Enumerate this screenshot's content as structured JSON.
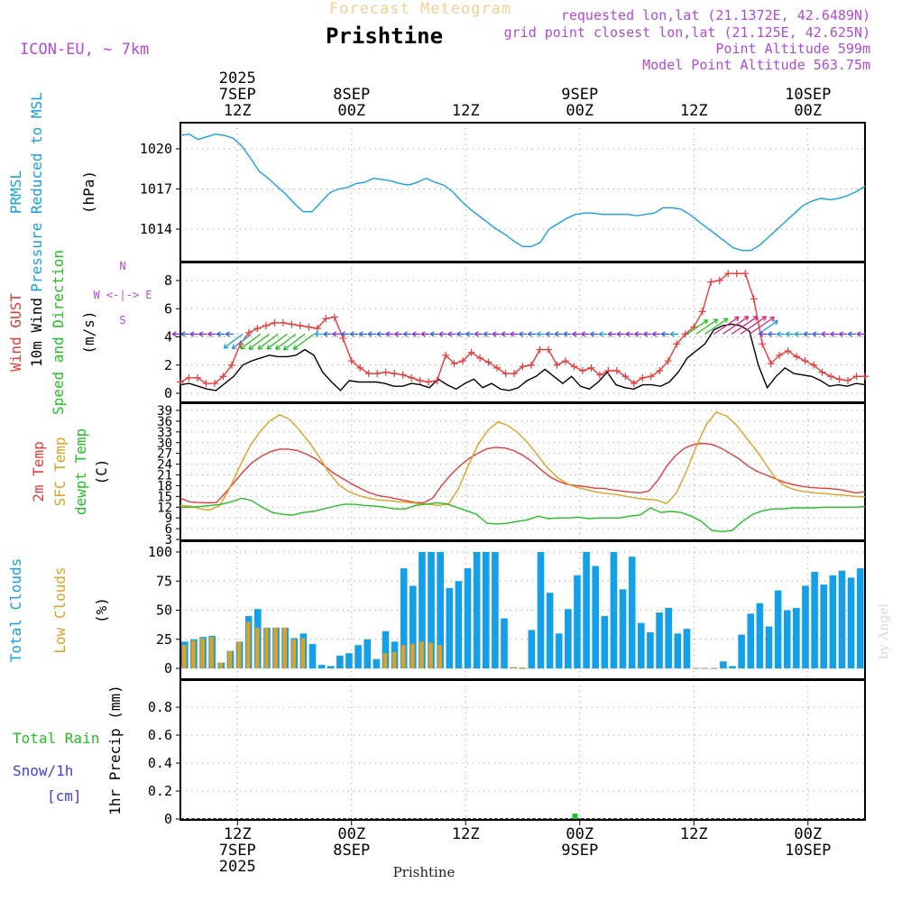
{
  "header": {
    "faded_title": "Forecast Meteogram",
    "place": "Prishtine",
    "model": "ICON-EU, ~ 7km",
    "requested": "requested lon,lat (21.1372E, 42.6489N)",
    "grid_point": "grid point closest lon,lat (21.125E, 42.625N)",
    "point_altitude": "Point Altitude 599m",
    "model_altitude": "Model Point Altitude 563.75m",
    "watermark": "by Angel",
    "footer_place": "Prishtine"
  },
  "time_axis": {
    "hours": [
      0,
      72
    ],
    "ticks": [
      {
        "h": 6,
        "top": [
          "2025",
          "7SEP",
          "12Z"
        ],
        "bottom": [
          "12Z",
          "7SEP",
          "2025"
        ]
      },
      {
        "h": 18,
        "top": [
          "8SEP",
          "00Z"
        ],
        "bottom": [
          "00Z",
          "8SEP"
        ]
      },
      {
        "h": 30,
        "top": [
          "12Z"
        ],
        "bottom": [
          "12Z"
        ]
      },
      {
        "h": 42,
        "top": [
          "9SEP",
          "00Z"
        ],
        "bottom": [
          "00Z",
          "9SEP"
        ]
      },
      {
        "h": 54,
        "top": [
          "12Z"
        ],
        "bottom": [
          "12Z"
        ]
      },
      {
        "h": 66,
        "top": [
          "10SEP",
          "00Z"
        ],
        "bottom": [
          "00Z",
          "10SEP"
        ]
      }
    ]
  },
  "chart_data": [
    {
      "type": "line",
      "id": "pressure",
      "title": "PRMSL Pressure Reduced to MSL",
      "ylabel": "(hPa)",
      "side_labels": [
        {
          "text": "PRMSL",
          "color": "#14a0e8"
        },
        {
          "text": "Pressure Reduced to MSL",
          "color": "#14a0e8"
        }
      ],
      "ylim": [
        1012.2,
        1022.0
      ],
      "yticks": [
        1014,
        1017,
        1020
      ],
      "series": [
        {
          "name": "PRMSL",
          "color": "#14a0e8",
          "values": [
            1021.0,
            1021.1,
            1020.7,
            1020.9,
            1021.1,
            1021.0,
            1020.8,
            1020.2,
            1019.3,
            1018.3,
            1017.8,
            1017.2,
            1016.6,
            1015.9,
            1015.3,
            1015.3,
            1016.0,
            1016.7,
            1017.0,
            1017.1,
            1017.4,
            1017.5,
            1017.8,
            1017.7,
            1017.6,
            1017.4,
            1017.3,
            1017.5,
            1017.8,
            1017.5,
            1017.3,
            1016.8,
            1016.1,
            1015.5,
            1015.0,
            1014.5,
            1014.0,
            1013.6,
            1013.1,
            1012.7,
            1012.7,
            1013.0,
            1014.0,
            1014.4,
            1014.8,
            1015.1,
            1015.2,
            1015.2,
            1015.1,
            1015.1,
            1015.1,
            1015.1,
            1015.0,
            1015.1,
            1015.2,
            1015.6,
            1015.6,
            1015.5,
            1015.1,
            1014.6,
            1014.1,
            1013.6,
            1013.1,
            1012.6,
            1012.4,
            1012.4,
            1012.8,
            1013.4,
            1014.0,
            1014.6,
            1015.2,
            1015.8,
            1016.1,
            1016.3,
            1016.2,
            1016.3,
            1016.5,
            1016.8,
            1017.2
          ]
        }
      ]
    },
    {
      "type": "line",
      "id": "wind",
      "title": "Wind GUST / 10m Wind Speed and Direction",
      "ylabel": "(m/s)",
      "side_labels": [
        {
          "text": "Wind GUST",
          "color": "#e83838"
        },
        {
          "text": "10m Wind",
          "color": "#000000"
        },
        {
          "text": "Speed and Direction",
          "color": "#22c022"
        }
      ],
      "compass": [
        "N",
        "W <-|-> E",
        "S"
      ],
      "ylim": [
        -0.5,
        9.3
      ],
      "yticks": [
        0,
        2,
        4,
        6,
        8
      ],
      "series": [
        {
          "name": "Wind GUST",
          "color": "#e83838",
          "marker": "+",
          "values": [
            0.8,
            1.1,
            1.1,
            0.7,
            0.7,
            1.2,
            2.0,
            3.5,
            4.3,
            4.6,
            4.8,
            5.0,
            5.0,
            4.9,
            4.8,
            4.7,
            4.6,
            5.3,
            5.4,
            3.9,
            2.3,
            1.8,
            1.4,
            1.4,
            1.5,
            1.4,
            1.3,
            1.1,
            0.9,
            0.8,
            0.9,
            2.7,
            2.1,
            2.3,
            2.9,
            2.5,
            2.2,
            1.8,
            1.4,
            1.4,
            1.9,
            2.0,
            3.1,
            3.1,
            2.0,
            2.3,
            1.9,
            1.6,
            1.8,
            1.3,
            1.6,
            1.6,
            1.2,
            0.7,
            1.1,
            1.2,
            1.6,
            2.3,
            3.5,
            4.2,
            4.7,
            5.8,
            7.9,
            8.0,
            8.5,
            8.5,
            8.5,
            6.7,
            3.5,
            2.1,
            2.7,
            3.0,
            2.6,
            2.3,
            2.0,
            1.5,
            1.2,
            1.0,
            0.9,
            1.2,
            1.2
          ]
        },
        {
          "name": "10m Wind",
          "color": "#000000",
          "values": [
            0.6,
            0.7,
            0.5,
            0.3,
            0.2,
            0.7,
            1.2,
            2.0,
            2.3,
            2.5,
            2.7,
            2.6,
            2.6,
            2.7,
            3.1,
            2.7,
            1.5,
            0.8,
            0.2,
            0.9,
            0.8,
            0.8,
            0.8,
            0.7,
            0.5,
            0.5,
            0.7,
            0.6,
            0.4,
            1.0,
            0.6,
            0.3,
            0.7,
            1.0,
            0.4,
            0.7,
            0.3,
            0.2,
            0.4,
            0.9,
            1.2,
            1.7,
            1.2,
            0.7,
            1.2,
            0.5,
            0.3,
            0.8,
            1.5,
            0.6,
            0.4,
            0.3,
            0.6,
            0.6,
            0.5,
            0.8,
            1.5,
            2.5,
            3.0,
            3.5,
            4.5,
            4.8,
            4.9,
            4.8,
            4.4,
            2.0,
            0.4,
            1.2,
            1.8,
            1.4,
            1.3,
            1.2,
            0.9,
            0.5,
            0.6,
            0.5,
            0.7,
            0.6
          ]
        }
      ]
    },
    {
      "type": "line",
      "id": "temperature",
      "title": "2m Temp / SFC Temp / dewpt Temp",
      "ylabel": "(C)",
      "side_labels": [
        {
          "text": "2m Temp",
          "color": "#e83838"
        },
        {
          "text": "SFC Temp",
          "color": "#e0a020"
        },
        {
          "text": "dewpt Temp",
          "color": "#22c022"
        }
      ],
      "ylim": [
        3,
        40
      ],
      "yticks": [
        3,
        6,
        9,
        12,
        15,
        18,
        21,
        24,
        27,
        30,
        33,
        36,
        39
      ],
      "series": [
        {
          "name": "2m Temp",
          "color": "#e83838",
          "values": [
            14.5,
            13.5,
            13.3,
            13.2,
            13.3,
            16.0,
            19.0,
            22.0,
            24.5,
            26.2,
            27.5,
            28.2,
            28.2,
            27.8,
            26.8,
            25.5,
            23.5,
            21.5,
            20.0,
            18.5,
            17.2,
            16.0,
            15.2,
            14.8,
            14.3,
            13.8,
            13.3,
            13.2,
            14.5,
            18.0,
            21.0,
            23.5,
            25.5,
            27.0,
            28.3,
            28.7,
            28.5,
            27.8,
            26.5,
            24.8,
            22.5,
            20.5,
            19.2,
            18.3,
            18.0,
            17.7,
            17.3,
            17.2,
            16.8,
            16.5,
            16.2,
            16.0,
            16.5,
            19.5,
            23.5,
            26.5,
            28.5,
            29.5,
            29.8,
            29.5,
            28.5,
            27.0,
            25.5,
            23.5,
            22.0,
            21.0,
            20.0,
            19.0,
            18.3,
            17.8,
            17.5,
            17.3,
            17.2,
            17.0,
            16.5,
            16.0,
            16.3
          ]
        },
        {
          "name": "SFC Temp",
          "color": "#e0a020",
          "values": [
            12.5,
            12.3,
            11.5,
            11.2,
            12.5,
            17.5,
            23.5,
            29.0,
            33.0,
            36.0,
            37.8,
            36.5,
            33.5,
            30.0,
            26.0,
            21.5,
            18.2,
            16.3,
            15.2,
            14.5,
            14.0,
            13.8,
            13.5,
            13.3,
            13.0,
            12.8,
            12.5,
            12.8,
            17.0,
            23.5,
            29.5,
            33.5,
            35.8,
            34.8,
            32.8,
            30.0,
            26.5,
            23.0,
            20.3,
            18.5,
            17.5,
            16.8,
            16.2,
            15.8,
            15.5,
            15.0,
            14.5,
            14.2,
            14.0,
            13.0,
            16.0,
            22.0,
            29.0,
            35.0,
            38.5,
            37.5,
            35.0,
            31.5,
            28.0,
            24.0,
            20.0,
            17.8,
            16.8,
            16.3,
            16.0,
            15.8,
            15.5,
            15.3,
            15.0,
            14.8
          ]
        },
        {
          "name": "dewpt Temp",
          "color": "#22c022",
          "values": [
            12.0,
            12.0,
            12.2,
            12.5,
            12.8,
            13.5,
            14.5,
            13.8,
            12.0,
            10.5,
            10.0,
            9.8,
            10.5,
            10.8,
            11.5,
            12.2,
            12.8,
            12.8,
            12.5,
            12.3,
            12.0,
            11.5,
            11.5,
            12.5,
            12.8,
            13.2,
            13.0,
            12.0,
            11.0,
            10.0,
            7.5,
            7.3,
            7.5,
            8.0,
            8.5,
            9.5,
            8.8,
            9.0,
            9.0,
            9.2,
            8.8,
            9.0,
            9.0,
            9.0,
            9.5,
            9.8,
            11.8,
            10.5,
            10.8,
            10.5,
            9.5,
            8.0,
            5.5,
            5.2,
            5.5,
            8.0,
            10.0,
            11.0,
            11.5,
            11.5,
            11.8,
            11.8,
            11.8,
            12.0,
            12.0,
            12.0,
            12.0,
            12.2
          ]
        }
      ]
    },
    {
      "type": "bar",
      "id": "clouds",
      "title": "Total Clouds / Low Clouds",
      "ylabel": "(%)",
      "side_labels": [
        {
          "text": "Total Clouds",
          "color": "#14a0e8"
        },
        {
          "text": "Low Clouds",
          "color": "#e0a020"
        }
      ],
      "ylim": [
        -6,
        104
      ],
      "yticks": [
        0,
        25,
        50,
        75,
        100
      ],
      "series": [
        {
          "name": "Total Clouds",
          "color": "#14a0e8",
          "values": [
            23,
            25,
            27,
            28,
            5,
            15,
            23,
            45,
            51,
            35,
            35,
            35,
            26,
            30,
            21,
            3,
            2,
            11,
            13,
            20,
            25,
            8,
            32,
            23,
            86,
            71,
            100,
            100,
            100,
            69,
            75,
            86,
            100,
            100,
            100,
            43,
            1,
            0,
            33,
            100,
            65,
            30,
            51,
            80,
            100,
            88,
            45,
            100,
            68,
            96,
            39,
            31,
            48,
            52,
            30,
            34,
            0,
            0,
            0,
            6,
            2,
            29,
            47,
            56,
            36,
            67,
            50,
            52,
            71,
            83,
            72,
            80,
            84,
            78,
            86
          ]
        },
        {
          "name": "Low Clouds",
          "color": "#e0a020",
          "values": [
            20,
            24,
            26,
            27,
            5,
            15,
            23,
            40,
            35,
            35,
            35,
            35,
            25,
            26,
            0,
            0,
            0,
            0,
            0,
            0,
            0,
            0,
            13,
            14,
            20,
            21,
            23,
            22,
            20,
            0,
            0,
            0,
            0,
            0,
            0,
            0,
            1,
            1,
            0,
            0,
            0,
            0,
            0,
            0,
            0,
            0,
            0,
            0,
            0,
            0,
            0,
            0,
            0,
            0,
            0,
            0,
            0,
            0,
            0,
            0,
            0,
            0,
            0,
            0,
            0,
            0,
            0,
            0,
            0,
            0,
            0,
            0,
            0,
            0,
            0
          ]
        }
      ]
    },
    {
      "type": "bar",
      "id": "precip",
      "title": "Total Rain / Snow/1h [cm] — 1hr Precip (mm)",
      "ylabel": "1hr Precip (mm)",
      "side_labels": [
        {
          "text": "Total  Rain",
          "color": "#22c022"
        },
        {
          "text": "Snow/1h",
          "color": "#3c3cf0"
        },
        {
          "text": "[cm]",
          "color": "#3c3cf0"
        }
      ],
      "ylim": [
        0,
        1.0
      ],
      "yticks": [
        0,
        0.2,
        0.4,
        0.6,
        0.8
      ],
      "series": [
        {
          "name": "Total Rain",
          "color": "#22c022",
          "points": [
            [
              41.5,
              0.02
            ]
          ]
        },
        {
          "name": "Snow/1h",
          "color": "#3c3cf0",
          "points": []
        }
      ]
    }
  ]
}
